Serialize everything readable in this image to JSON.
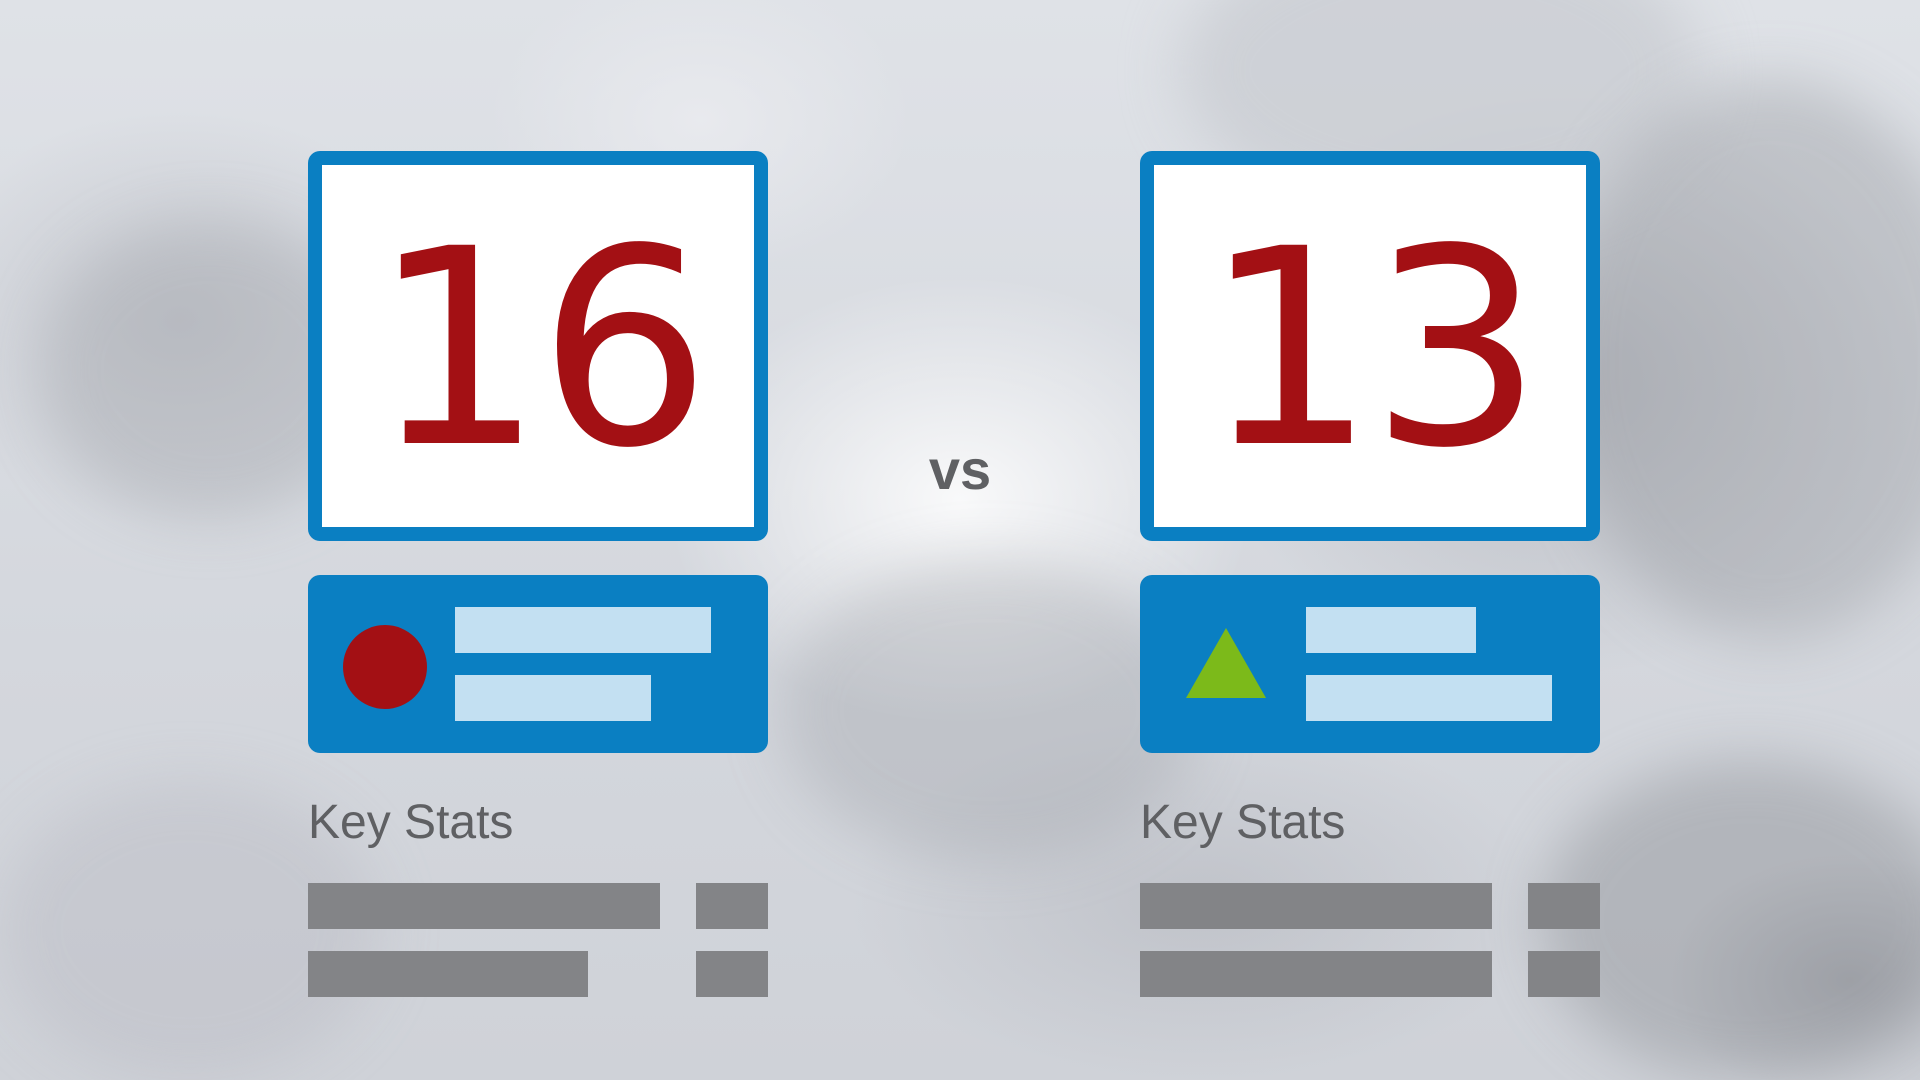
{
  "colors": {
    "accent_blue": "#0a7fc2",
    "score_red": "#a31014",
    "status_red": "#a31014",
    "status_green": "#7cba1a",
    "placeholder_light_blue": "#c3e0f2",
    "placeholder_gray": "#838487",
    "text_gray": "#5f6063"
  },
  "left_team": {
    "score": "16",
    "status_icon": "red-circle-icon",
    "stats_title": "Key Stats"
  },
  "right_team": {
    "score": "13",
    "status_icon": "green-triangle-icon",
    "stats_title": "Key Stats"
  },
  "versus_label": "vs"
}
